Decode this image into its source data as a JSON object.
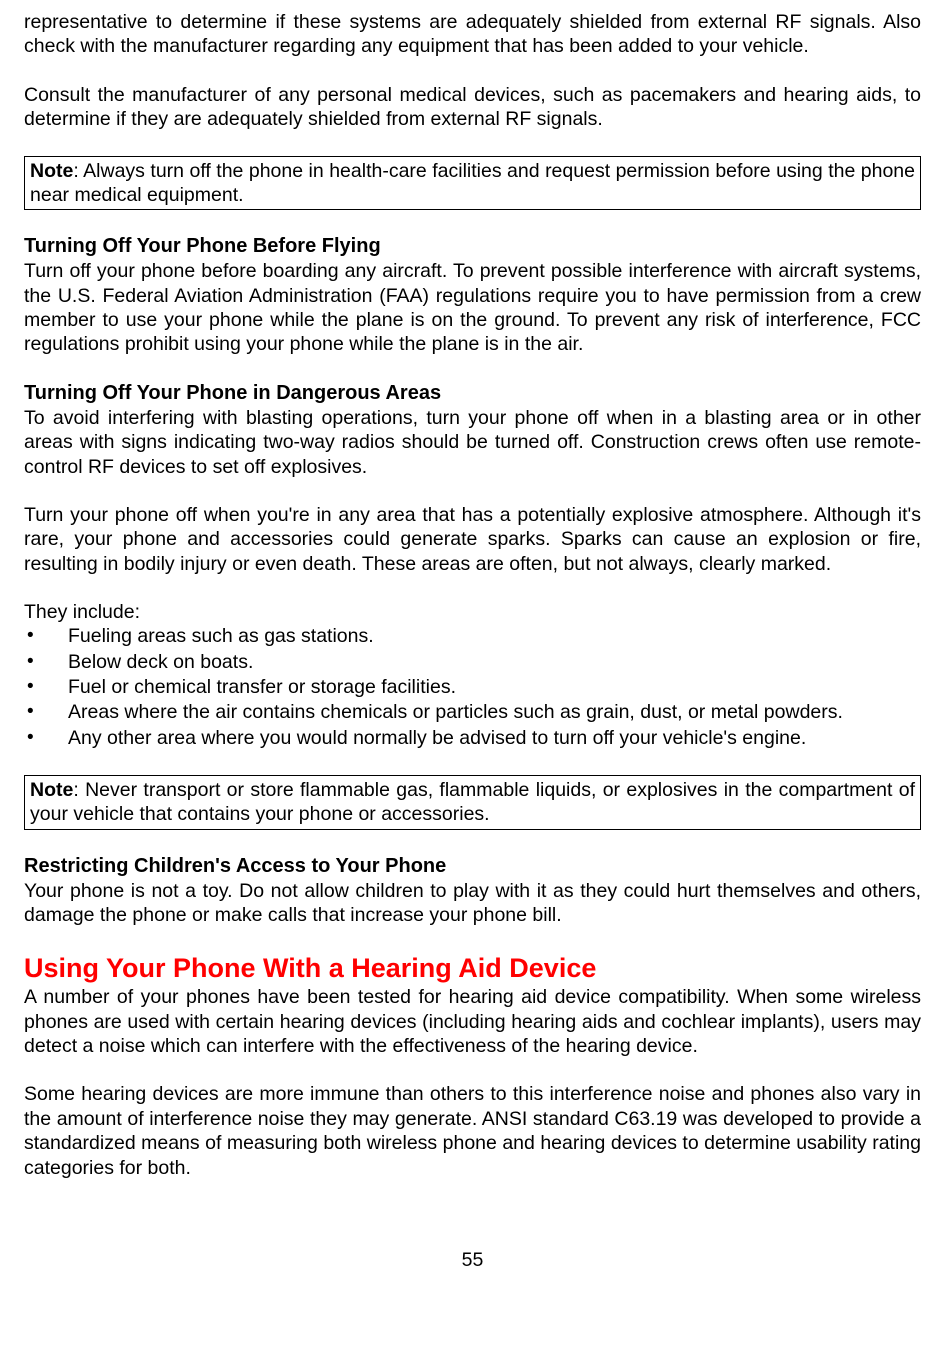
{
  "para1": "representative to determine if these systems are adequately shielded from external RF signals. Also check with the manufacturer regarding any equipment that has been added to your vehicle.",
  "para2": "Consult the manufacturer of any personal medical devices, such as pacemakers and hearing aids, to determine if they are adequately shielded from external RF signals.",
  "note1_label": "Note",
  "note1_text": ": Always turn off the phone in health-care facilities and request permission before using the phone near medical equipment.",
  "h1": "Turning Off Your Phone Before Flying",
  "para3": "Turn off your phone before boarding any aircraft. To prevent possible interference with aircraft systems, the U.S. Federal Aviation Administration (FAA) regulations require you to have permission from a crew member to use your phone while the plane is on the ground. To prevent any risk of interference, FCC regulations prohibit using your phone while the plane is in the air.",
  "h2": "Turning Off Your Phone in Dangerous Areas",
  "para4": "To avoid interfering with blasting operations, turn your phone off when in a blasting area or in other areas with signs indicating two-way radios should be turned off. Construction crews often use remote-control RF devices to set off explosives.",
  "para5": "Turn your phone off when you're in any area that has a potentially explosive atmosphere. Although it's rare, your phone and accessories could generate sparks. Sparks can cause an explosion or fire, resulting in bodily injury or even death. These areas are often, but not always, clearly marked.",
  "para6": "They include:",
  "bullets": {
    "b1": "Fueling areas such as gas stations.",
    "b2": "Below deck on boats.",
    "b3": "Fuel or chemical transfer or storage facilities.",
    "b4": "Areas where the air contains chemicals or particles such as grain, dust, or metal powders.",
    "b5": "Any other area where you would normally be advised to turn off your vehicle's engine."
  },
  "note2_label": "Note",
  "note2_text": ": Never transport or store flammable gas, flammable liquids, or explosives in the compartment of your vehicle that contains your phone or accessories.",
  "h3": "Restricting Children's Access to Your Phone",
  "para7": "Your phone is not a toy. Do not allow children to play with it as they could hurt themselves and others, damage the phone or make calls that increase your phone bill.",
  "h4": "Using Your Phone With a Hearing Aid Device",
  "para8": "A number of your phones have been tested for hearing aid device compatibility. When some wireless phones are used with certain hearing devices (including hearing aids and cochlear implants), users may detect a noise which can interfere with the effectiveness of the hearing device.",
  "para9": "Some hearing devices are more immune than others to this interference noise and phones also vary in the amount of interference noise they may generate. ANSI standard C63.19 was developed to provide a standardized means of measuring both wireless phone and hearing devices to determine usability rating categories for both.",
  "page_number": "55"
}
